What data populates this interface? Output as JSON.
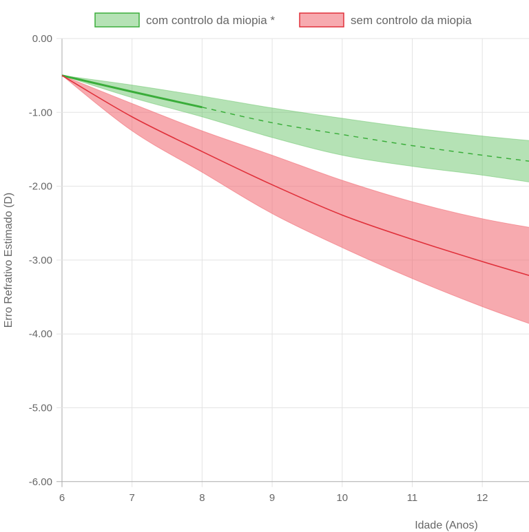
{
  "chart_data": {
    "type": "line",
    "title": "",
    "xlabel": "Idade (Anos)",
    "ylabel": "Erro Refrativo Estimado (D)",
    "xlim": [
      6,
      13
    ],
    "ylim": [
      -6,
      0
    ],
    "x_ticks": [
      "6",
      "7",
      "8",
      "9",
      "10",
      "11",
      "12"
    ],
    "y_ticks": [
      "0.00",
      "-1.00",
      "-2.00",
      "-3.00",
      "-4.00",
      "-5.00",
      "-6.00"
    ],
    "grid": true,
    "legend_position": "top",
    "x": [
      6,
      7,
      8,
      9,
      10,
      11,
      12,
      13
    ],
    "series": [
      {
        "name": "com controlo da miopia *",
        "color": "#3aad3a",
        "fill": "rgba(90,190,90,0.45)",
        "values": [
          -0.5,
          -0.72,
          -0.93,
          -1.14,
          -1.3,
          -1.45,
          -1.58,
          -1.7
        ],
        "solid_until": 8,
        "upper": [
          -0.5,
          -0.63,
          -0.78,
          -0.94,
          -1.08,
          -1.21,
          -1.32,
          -1.41
        ],
        "lower": [
          -0.5,
          -0.8,
          -1.06,
          -1.34,
          -1.58,
          -1.73,
          -1.85,
          -1.99
        ]
      },
      {
        "name": "sem controlo da miopia",
        "color": "#e0303a",
        "fill": "rgba(240,100,110,0.55)",
        "values": [
          -0.5,
          -1.06,
          -1.53,
          -1.98,
          -2.39,
          -2.72,
          -3.02,
          -3.3
        ],
        "upper": [
          -0.5,
          -0.88,
          -1.25,
          -1.58,
          -1.92,
          -2.21,
          -2.44,
          -2.61
        ],
        "lower": [
          -0.5,
          -1.25,
          -1.81,
          -2.37,
          -2.83,
          -3.25,
          -3.63,
          -3.97
        ]
      }
    ]
  }
}
